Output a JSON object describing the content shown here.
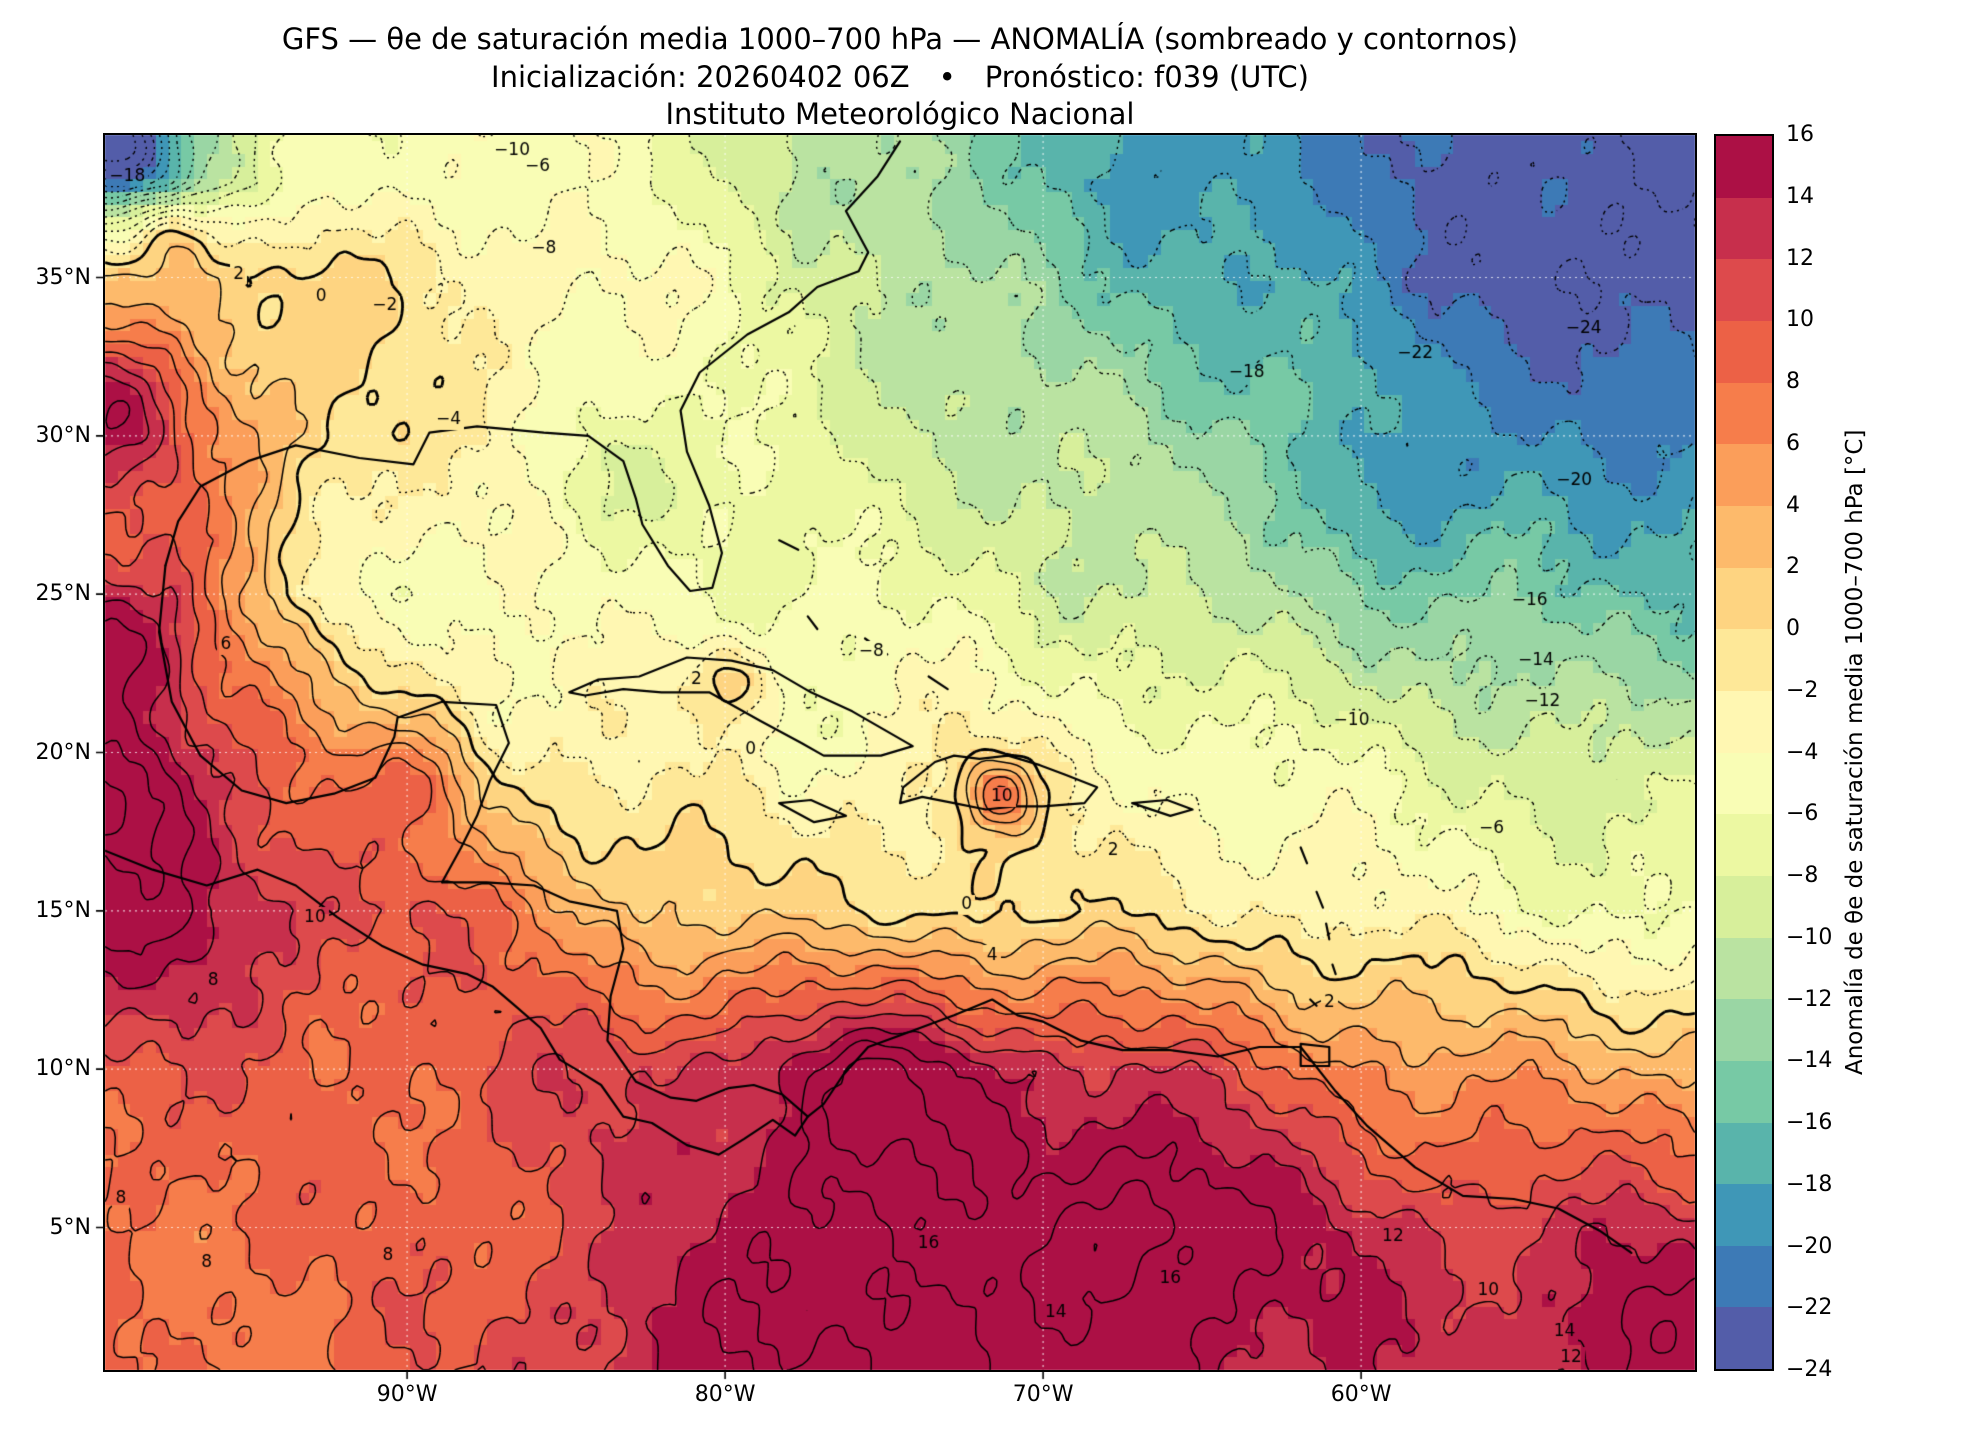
{
  "header": {
    "title": "GFS — θe de saturación media 1000–700 hPa — ANOMALÍA (sombreado y contornos)",
    "subtitle": "Inicialización: 20260402 06Z  •  Pronóstico: f039 (UTC)",
    "institution": "Instituto Meteorológico Nacional"
  },
  "axes": {
    "lat_ticks": [
      {
        "value": 35,
        "label": "35°N"
      },
      {
        "value": 30,
        "label": "30°N"
      },
      {
        "value": 25,
        "label": "25°N"
      },
      {
        "value": 20,
        "label": "20°N"
      },
      {
        "value": 15,
        "label": "15°N"
      },
      {
        "value": 10,
        "label": "10°N"
      },
      {
        "value": 5,
        "label": "5°N"
      }
    ],
    "lon_ticks": [
      {
        "value": -90,
        "label": "90°W"
      },
      {
        "value": -80,
        "label": "80°W"
      },
      {
        "value": -70,
        "label": "70°W"
      },
      {
        "value": -60,
        "label": "60°W"
      }
    ]
  },
  "colorbar": {
    "label": "Anomalía de θe de saturación media 1000–700 hPa [°C]",
    "min": -24,
    "max": 16,
    "step": 2,
    "tick_labels": [
      "16",
      "14",
      "12",
      "10",
      "8",
      "6",
      "4",
      "2",
      "0",
      "−2",
      "−4",
      "−6",
      "−8",
      "−10",
      "−12",
      "−14",
      "−16",
      "−18",
      "−20",
      "−22",
      "−24"
    ],
    "spectral_anchors": [
      "#9e0142",
      "#d53e4f",
      "#f46d43",
      "#fdae61",
      "#fee08b",
      "#ffffbf",
      "#e6f598",
      "#abdda4",
      "#66c2a5",
      "#3288bd",
      "#5e4fa2"
    ]
  },
  "chart_data": {
    "type": "heatmap",
    "title": "GFS — θe de saturación media 1000–700 hPa — ANOMALÍA (sombreado y contornos)",
    "units": "°C",
    "lon_range": [
      -99.5,
      -49.5
    ],
    "lat_range": [
      0.5,
      39.5
    ],
    "contour_levels": [
      -26,
      -24,
      -22,
      -20,
      -18,
      -16,
      -14,
      -12,
      -10,
      -8,
      -6,
      -4,
      -2,
      0,
      2,
      4,
      6,
      8,
      10,
      12,
      14,
      16,
      18,
      20,
      22,
      24
    ],
    "grid": {
      "lons": [
        -97.5,
        -92.5,
        -87.5,
        -82.5,
        -77.5,
        -72.5,
        -67.5,
        -62.5,
        -57.5,
        -52.5
      ],
      "lats": [
        38,
        35,
        30,
        25,
        20,
        15,
        10,
        5,
        2
      ],
      "anomaly_values": [
        [
          -14,
          -5,
          -4,
          -6,
          -10,
          -14,
          -18,
          -20,
          -22,
          -24
        ],
        [
          2,
          0,
          -2,
          -4,
          -8,
          -12,
          -16,
          -18,
          -22,
          -24
        ],
        [
          8,
          1,
          -3,
          -5,
          -8,
          -10,
          -12,
          -14,
          -18,
          -20
        ],
        [
          10,
          -4,
          -5,
          -5,
          -6,
          -7,
          -10,
          -12,
          -14,
          -16
        ],
        [
          14,
          6,
          -2,
          -3,
          -4,
          -2,
          -4,
          -6,
          -8,
          -10
        ],
        [
          16,
          12,
          8,
          2,
          0,
          0,
          -1,
          -2,
          -4,
          -6
        ],
        [
          10,
          8,
          10,
          12,
          14,
          14,
          12,
          8,
          5,
          4
        ],
        [
          8,
          8,
          9,
          12,
          16,
          16,
          16,
          14,
          12,
          12
        ],
        [
          8,
          8,
          10,
          14,
          16,
          16,
          16,
          14,
          13,
          12
        ]
      ]
    },
    "local_extrema": [
      {
        "lon": -99.2,
        "lat": 39.2,
        "amplitude": -14,
        "radius_deg": 1.1
      },
      {
        "lon": -97.4,
        "lat": 36.4,
        "amplitude": 7,
        "radius_deg": 0.9
      },
      {
        "lon": -99.6,
        "lat": 31.0,
        "amplitude": 8,
        "radius_deg": 1.6
      },
      {
        "lon": -99.8,
        "lat": 23.5,
        "amplitude": 7,
        "radius_deg": 1.6
      },
      {
        "lon": -99.2,
        "lat": 18.5,
        "amplitude": 6,
        "radius_deg": 1.5
      },
      {
        "lon": -71.4,
        "lat": 18.7,
        "amplitude": 9,
        "radius_deg": 0.8
      },
      {
        "lon": -80.0,
        "lat": 22.3,
        "amplitude": 6,
        "radius_deg": 0.9
      },
      {
        "lon": -89.3,
        "lat": 19.3,
        "amplitude": 5,
        "radius_deg": 1.3
      },
      {
        "lon": -83.6,
        "lat": 28.6,
        "amplitude": -3.5,
        "radius_deg": 1.4
      },
      {
        "lon": -58.6,
        "lat": 28.4,
        "amplitude": -4,
        "radius_deg": 1.8
      },
      {
        "lon": -51.0,
        "lat": 1.5,
        "amplitude": 5,
        "radius_deg": 2.0
      },
      {
        "lon": -75.0,
        "lat": 9.0,
        "amplitude": 4,
        "radius_deg": 2.2
      },
      {
        "lon": -66.5,
        "lat": 5.0,
        "amplitude": 4,
        "radius_deg": 2.5
      }
    ],
    "contour_labels": [
      {
        "text": "−24",
        "lon": -53.0,
        "lat": 33.4
      },
      {
        "text": "−22",
        "lon": -58.3,
        "lat": 32.6
      },
      {
        "text": "−20",
        "lon": -53.3,
        "lat": 28.6
      },
      {
        "text": "−18",
        "lon": -63.6,
        "lat": 32.0
      },
      {
        "text": "−18",
        "lon": -98.8,
        "lat": 38.2
      },
      {
        "text": "−16",
        "lon": -54.7,
        "lat": 24.8
      },
      {
        "text": "−14",
        "lon": -54.5,
        "lat": 22.9
      },
      {
        "text": "−12",
        "lon": -54.3,
        "lat": 21.6
      },
      {
        "text": "−10",
        "lon": -60.3,
        "lat": 21.0
      },
      {
        "text": "−10",
        "lon": -86.7,
        "lat": 39.0
      },
      {
        "text": "−8",
        "lon": -75.4,
        "lat": 23.2
      },
      {
        "text": "−8",
        "lon": -85.7,
        "lat": 35.9
      },
      {
        "text": "−6",
        "lon": -55.9,
        "lat": 17.6
      },
      {
        "text": "−6",
        "lon": -85.9,
        "lat": 38.5
      },
      {
        "text": "−4",
        "lon": -88.7,
        "lat": 30.5
      },
      {
        "text": "−2",
        "lon": -90.7,
        "lat": 34.1
      },
      {
        "text": "0",
        "lon": -92.7,
        "lat": 34.4
      },
      {
        "text": "0",
        "lon": -72.4,
        "lat": 15.2
      },
      {
        "text": "0",
        "lon": -79.2,
        "lat": 20.1
      },
      {
        "text": "2",
        "lon": -95.3,
        "lat": 35.1
      },
      {
        "text": "2",
        "lon": -67.8,
        "lat": 16.9
      },
      {
        "text": "2",
        "lon": -61.0,
        "lat": 12.1
      },
      {
        "text": "2",
        "lon": -80.9,
        "lat": 22.3
      },
      {
        "text": "4",
        "lon": -71.6,
        "lat": 13.6
      },
      {
        "text": "6",
        "lon": -95.7,
        "lat": 23.4
      },
      {
        "text": "8",
        "lon": -96.1,
        "lat": 12.8
      },
      {
        "text": "8",
        "lon": -99.0,
        "lat": 5.9
      },
      {
        "text": "8",
        "lon": -96.3,
        "lat": 3.9
      },
      {
        "text": "8",
        "lon": -90.6,
        "lat": 4.1
      },
      {
        "text": "10",
        "lon": -92.9,
        "lat": 14.8
      },
      {
        "text": "10",
        "lon": -71.3,
        "lat": 18.6
      },
      {
        "text": "16",
        "lon": -73.6,
        "lat": 4.5
      },
      {
        "text": "14",
        "lon": -69.6,
        "lat": 2.3
      },
      {
        "text": "16",
        "lon": -66.0,
        "lat": 3.4
      },
      {
        "text": "12",
        "lon": -59.0,
        "lat": 4.7
      },
      {
        "text": "10",
        "lon": -56.0,
        "lat": 3.0
      },
      {
        "text": "14",
        "lon": -53.6,
        "lat": 1.7
      },
      {
        "text": "12",
        "lon": -53.4,
        "lat": 0.9
      }
    ],
    "coastlines": [
      [
        [
          -97.6,
          25.9
        ],
        [
          -97.2,
          27.3
        ],
        [
          -96.5,
          28.4
        ],
        [
          -95.0,
          29.2
        ],
        [
          -93.5,
          29.7
        ],
        [
          -91.5,
          29.3
        ],
        [
          -89.8,
          29.1
        ],
        [
          -89.3,
          30.1
        ],
        [
          -87.8,
          30.3
        ],
        [
          -85.7,
          30.1
        ],
        [
          -84.3,
          30.0
        ],
        [
          -83.2,
          29.2
        ],
        [
          -82.8,
          28.0
        ],
        [
          -82.6,
          27.2
        ],
        [
          -81.8,
          25.9
        ],
        [
          -81.1,
          25.1
        ],
        [
          -80.4,
          25.2
        ],
        [
          -80.1,
          26.3
        ],
        [
          -80.5,
          27.8
        ],
        [
          -81.2,
          29.5
        ],
        [
          -81.4,
          30.8
        ],
        [
          -80.8,
          32.0
        ],
        [
          -79.3,
          33.2
        ],
        [
          -78.0,
          33.9
        ],
        [
          -77.1,
          34.7
        ],
        [
          -75.8,
          35.2
        ],
        [
          -75.5,
          35.8
        ],
        [
          -76.2,
          37.1
        ],
        [
          -75.2,
          38.2
        ],
        [
          -74.5,
          39.3
        ]
      ],
      [
        [
          -97.6,
          25.9
        ],
        [
          -97.8,
          23.8
        ],
        [
          -97.4,
          21.6
        ],
        [
          -96.5,
          19.9
        ],
        [
          -95.2,
          18.8
        ],
        [
          -93.8,
          18.4
        ],
        [
          -92.3,
          18.7
        ],
        [
          -91.0,
          19.2
        ],
        [
          -90.4,
          20.5
        ],
        [
          -90.3,
          21.1
        ],
        [
          -88.9,
          21.6
        ],
        [
          -87.2,
          21.5
        ],
        [
          -86.8,
          20.3
        ],
        [
          -87.4,
          19.1
        ],
        [
          -87.8,
          18.0
        ],
        [
          -88.3,
          17.0
        ],
        [
          -88.9,
          15.9
        ]
      ],
      [
        [
          -88.9,
          15.9
        ],
        [
          -87.5,
          15.9
        ],
        [
          -86.0,
          15.8
        ],
        [
          -84.9,
          15.3
        ],
        [
          -83.4,
          15.0
        ],
        [
          -83.2,
          13.8
        ],
        [
          -83.6,
          12.3
        ],
        [
          -83.7,
          10.9
        ],
        [
          -82.8,
          9.6
        ],
        [
          -81.7,
          9.1
        ],
        [
          -80.9,
          9.0
        ],
        [
          -79.9,
          9.4
        ],
        [
          -79.1,
          9.5
        ],
        [
          -78.2,
          9.2
        ],
        [
          -77.4,
          8.5
        ],
        [
          -76.9,
          8.9
        ],
        [
          -76.3,
          9.8
        ],
        [
          -75.5,
          10.7
        ],
        [
          -74.4,
          11.1
        ],
        [
          -72.8,
          11.7
        ],
        [
          -71.6,
          12.2
        ],
        [
          -70.8,
          11.7
        ],
        [
          -70.0,
          11.5
        ],
        [
          -68.8,
          10.9
        ],
        [
          -67.5,
          10.6
        ],
        [
          -66.0,
          10.6
        ],
        [
          -64.5,
          10.4
        ],
        [
          -63.2,
          10.7
        ],
        [
          -61.9,
          10.7
        ],
        [
          -60.8,
          9.3
        ],
        [
          -59.8,
          8.2
        ],
        [
          -58.3,
          6.9
        ],
        [
          -56.8,
          6.0
        ],
        [
          -55.2,
          5.9
        ],
        [
          -53.8,
          5.6
        ],
        [
          -52.5,
          4.9
        ],
        [
          -51.5,
          4.2
        ]
      ],
      [
        [
          -99.5,
          16.9
        ],
        [
          -98.0,
          16.3
        ],
        [
          -96.3,
          15.8
        ],
        [
          -94.7,
          16.3
        ],
        [
          -93.5,
          15.8
        ],
        [
          -92.2,
          14.8
        ],
        [
          -90.8,
          13.9
        ],
        [
          -89.5,
          13.3
        ],
        [
          -88.1,
          13.0
        ],
        [
          -87.3,
          12.6
        ],
        [
          -86.6,
          12.0
        ],
        [
          -85.8,
          11.3
        ],
        [
          -85.2,
          10.3
        ],
        [
          -84.7,
          10.0
        ],
        [
          -83.9,
          9.5
        ],
        [
          -83.2,
          8.5
        ],
        [
          -82.3,
          8.3
        ],
        [
          -81.2,
          7.6
        ],
        [
          -80.2,
          7.3
        ],
        [
          -79.4,
          7.8
        ],
        [
          -78.5,
          8.4
        ],
        [
          -77.8,
          7.9
        ],
        [
          -77.4,
          8.5
        ]
      ],
      [
        [
          -84.9,
          21.9
        ],
        [
          -84.0,
          22.3
        ],
        [
          -82.7,
          22.4
        ],
        [
          -81.2,
          23.0
        ],
        [
          -79.8,
          22.9
        ],
        [
          -78.5,
          22.6
        ],
        [
          -77.3,
          21.9
        ],
        [
          -76.0,
          21.3
        ],
        [
          -74.1,
          20.2
        ],
        [
          -75.1,
          19.9
        ],
        [
          -76.9,
          19.9
        ],
        [
          -77.6,
          20.3
        ],
        [
          -78.9,
          21.0
        ],
        [
          -80.5,
          21.9
        ],
        [
          -82.0,
          21.9
        ],
        [
          -83.2,
          22.0
        ],
        [
          -84.4,
          21.8
        ],
        [
          -84.9,
          21.9
        ]
      ],
      [
        [
          -74.5,
          18.4
        ],
        [
          -73.8,
          18.6
        ],
        [
          -72.8,
          18.4
        ],
        [
          -71.8,
          18.2
        ],
        [
          -70.9,
          18.3
        ],
        [
          -70.0,
          18.3
        ],
        [
          -68.7,
          18.4
        ],
        [
          -68.3,
          18.9
        ],
        [
          -69.3,
          19.3
        ],
        [
          -70.1,
          19.6
        ],
        [
          -71.1,
          19.9
        ],
        [
          -72.0,
          19.8
        ],
        [
          -72.8,
          19.9
        ],
        [
          -73.4,
          19.7
        ],
        [
          -74.4,
          18.9
        ],
        [
          -74.5,
          18.4
        ]
      ],
      [
        [
          -78.3,
          18.4
        ],
        [
          -77.3,
          18.5
        ],
        [
          -76.2,
          18.0
        ],
        [
          -77.2,
          17.8
        ],
        [
          -78.3,
          18.4
        ]
      ],
      [
        [
          -67.2,
          18.4
        ],
        [
          -66.1,
          18.5
        ],
        [
          -65.3,
          18.2
        ],
        [
          -66.0,
          18.0
        ],
        [
          -67.2,
          18.4
        ]
      ],
      [
        [
          -61.9,
          10.8
        ],
        [
          -61.0,
          10.7
        ],
        [
          -61.0,
          10.1
        ],
        [
          -61.9,
          10.1
        ],
        [
          -61.9,
          10.8
        ]
      ],
      [
        [
          -78.3,
          26.7
        ],
        [
          -77.7,
          26.4
        ]
      ],
      [
        [
          -77.4,
          24.3
        ],
        [
          -77.1,
          23.9
        ]
      ],
      [
        [
          -75.6,
          23.6
        ],
        [
          -74.9,
          23.1
        ]
      ],
      [
        [
          -73.6,
          22.4
        ],
        [
          -73.0,
          22.0
        ]
      ],
      [
        [
          -61.9,
          17.0
        ],
        [
          -61.7,
          16.5
        ]
      ],
      [
        [
          -61.4,
          15.6
        ],
        [
          -61.2,
          15.1
        ]
      ],
      [
        [
          -61.1,
          14.6
        ],
        [
          -61.0,
          14.1
        ]
      ],
      [
        [
          -60.9,
          13.3
        ],
        [
          -60.8,
          13.0
        ]
      ],
      [
        [
          -61.6,
          12.2
        ],
        [
          -61.4,
          12.0
        ]
      ]
    ]
  }
}
